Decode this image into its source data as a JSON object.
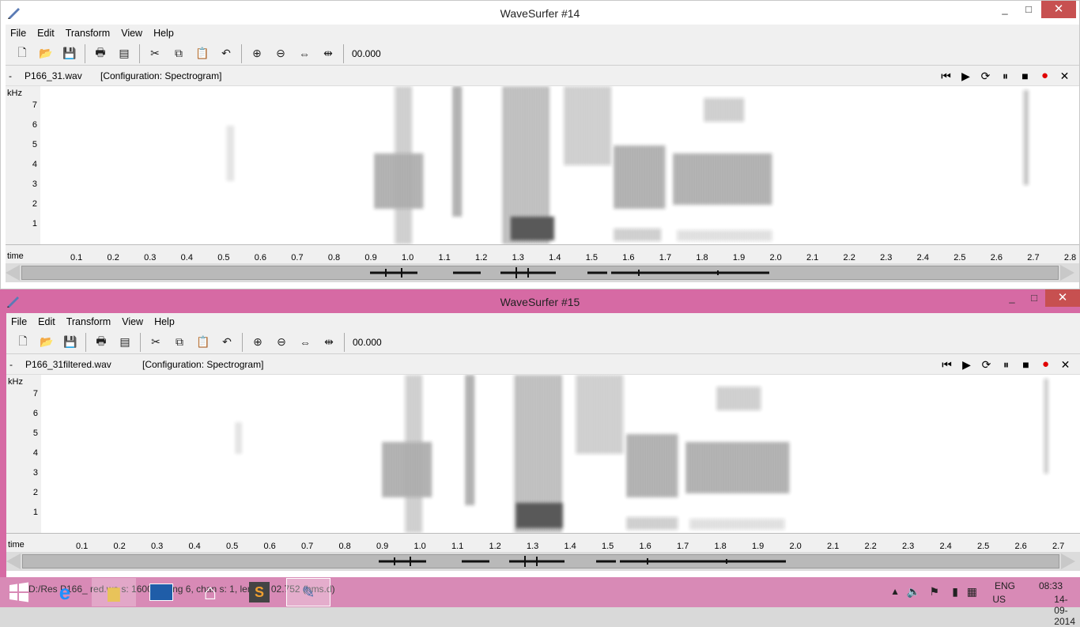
{
  "window1": {
    "title": "WaveSurfer #14",
    "menu": [
      "File",
      "Edit",
      "Transform",
      "View",
      "Help"
    ],
    "time_display": "00.000",
    "track": {
      "dash": "-",
      "filename": "P166_31.wav",
      "configuration": "[Configuration: Spectrogram]"
    },
    "y_unit": "kHz",
    "y_ticks": [
      "7",
      "6",
      "5",
      "4",
      "3",
      "2",
      "1"
    ],
    "time_label": "time",
    "time_ticks": [
      "0.1",
      "0.2",
      "0.3",
      "0.4",
      "0.5",
      "0.6",
      "0.7",
      "0.8",
      "0.9",
      "1.0",
      "1.1",
      "1.2",
      "1.3",
      "1.4",
      "1.5",
      "1.6",
      "1.7",
      "1.8",
      "1.9",
      "2.0",
      "2.1",
      "2.2",
      "2.3",
      "2.4",
      "2.5",
      "2.6",
      "2.7",
      "2.8"
    ]
  },
  "window2": {
    "title": "WaveSurfer #15",
    "menu": [
      "File",
      "Edit",
      "Transform",
      "View",
      "Help"
    ],
    "time_display": "00.000",
    "track": {
      "dash": "-",
      "filename": "P166_31filtered.wav",
      "configuration": "[Configuration: Spectrogram]"
    },
    "y_unit": "kHz",
    "y_ticks": [
      "7",
      "6",
      "5",
      "4",
      "3",
      "2",
      "1"
    ],
    "time_label": "time",
    "time_ticks": [
      "0.1",
      "0.2",
      "0.3",
      "0.4",
      "0.5",
      "0.6",
      "0.7",
      "0.8",
      "0.9",
      "1.0",
      "1.1",
      "1.2",
      "1.3",
      "1.4",
      "1.5",
      "1.6",
      "1.7",
      "1.8",
      "1.9",
      "2.0",
      "2.1",
      "2.2",
      "2.3",
      "2.4",
      "2.5",
      "2.6",
      "2.7"
    ]
  },
  "window_controls": {
    "minimize": "_",
    "maximize": "□",
    "close": "✕"
  },
  "toolbar_icons": [
    "new-file-icon",
    "open-folder-icon",
    "save-icon",
    "print-icon",
    "properties-icon",
    "cut-icon",
    "copy-icon",
    "paste-icon",
    "undo-icon",
    "zoom-in-icon",
    "zoom-out-icon",
    "zoom-fit-icon",
    "zoom-selection-icon"
  ],
  "playback_icons": [
    "skip-start-icon",
    "play-icon",
    "play-loop-icon",
    "pause-icon",
    "stop-icon",
    "record-icon",
    "close-track-icon"
  ],
  "statusbar": {
    "text": "D:/Res  P166_  red.wa  s: 1600  coding  6, chan  s: 1, length: 02.752 (hms.d)"
  },
  "tray": {
    "language": "ENG",
    "region": "US",
    "time": "08:33",
    "date": "14-09-2014"
  },
  "colors": {
    "accent_pink": "#d66aa4",
    "close_red": "#c75050",
    "record_red": "#e00000"
  }
}
